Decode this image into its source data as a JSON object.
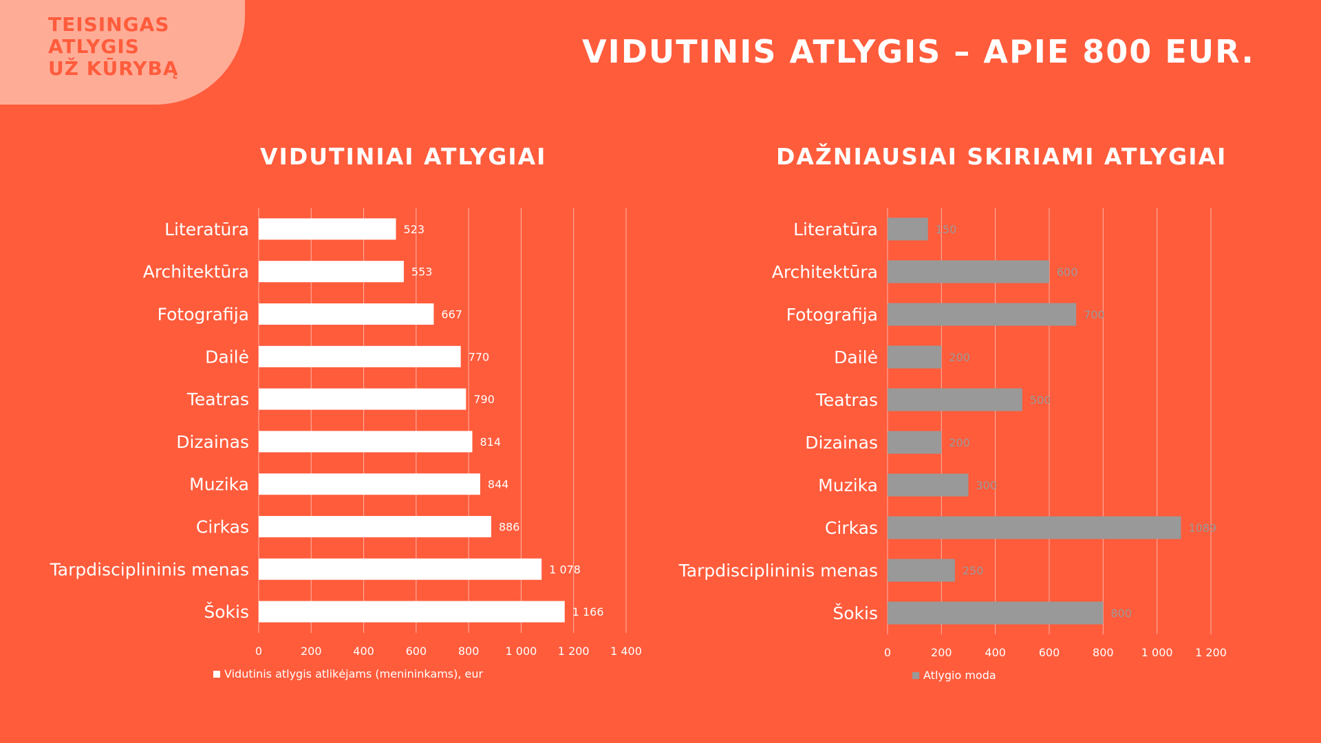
{
  "logo": {
    "line1": "TEISINGAS",
    "line2": "ATLYGIS",
    "line3": "UŽ KŪRYBĄ",
    "background": "#ffac97",
    "text_color": "#ff5c3c"
  },
  "slide": {
    "title": "VIDUTINIS ATLYGIS – APIE 800 EUR.",
    "background": "#ff5c3c"
  },
  "chart_data": [
    {
      "type": "bar",
      "orientation": "horizontal",
      "title": "VIDUTINIAI ATLYGIAI",
      "categories": [
        "Literatūra",
        "Architektūra",
        "Fotografija",
        "Dailė",
        "Teatras",
        "Dizainas",
        "Muzika",
        "Cirkas",
        "Tarpdisciplininis menas",
        "Šokis"
      ],
      "series": [
        {
          "name": "Vidutinis atlygis atlikėjams (menininkams), eur",
          "values": [
            523,
            553,
            667,
            770,
            790,
            814,
            844,
            886,
            1078,
            1166
          ],
          "labels": [
            "523",
            "553",
            "667",
            "770",
            "790",
            "814",
            "844",
            "886",
            "1 078",
            "1 166"
          ],
          "color": "#ffffff"
        }
      ],
      "xlim": [
        0,
        1400
      ],
      "xticks": [
        0,
        200,
        400,
        600,
        800,
        1000,
        1200,
        1400
      ],
      "xtick_labels": [
        "0",
        "200",
        "400",
        "600",
        "800",
        "1 000",
        "1 200",
        "1 400"
      ],
      "grid": true,
      "legend_position": "bottom",
      "label_color": "#ffffff"
    },
    {
      "type": "bar",
      "orientation": "horizontal",
      "title": "DAŽNIAUSIAI SKIRIAMI ATLYGIAI",
      "categories": [
        "Literatūra",
        "Architektūra",
        "Fotografija",
        "Dailė",
        "Teatras",
        "Dizainas",
        "Muzika",
        "Cirkas",
        "Tarpdisciplininis menas",
        "Šokis"
      ],
      "series": [
        {
          "name": "Atlygio moda",
          "values": [
            150,
            600,
            700,
            200,
            500,
            200,
            300,
            1089,
            250,
            800
          ],
          "labels": [
            "150",
            "600",
            "700",
            "200",
            "500",
            "200",
            "300",
            "1089",
            "250",
            "800"
          ],
          "color": "#999999"
        }
      ],
      "xlim": [
        0,
        1200
      ],
      "xticks": [
        0,
        200,
        400,
        600,
        800,
        1000,
        1200
      ],
      "xtick_labels": [
        "0",
        "200",
        "400",
        "600",
        "800",
        "1 000",
        "1 200"
      ],
      "grid": true,
      "legend_position": "bottom",
      "label_color": "#999999"
    }
  ]
}
